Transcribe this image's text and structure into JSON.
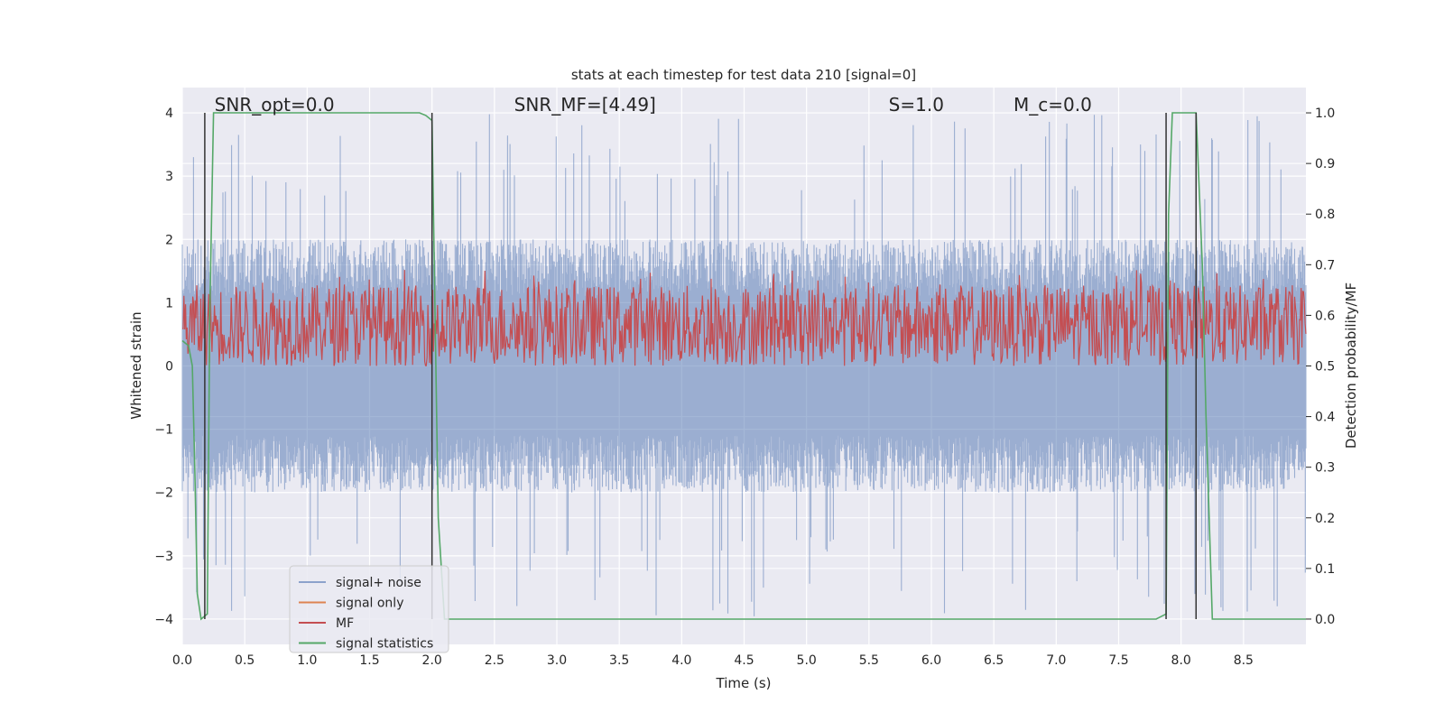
{
  "chart_data": {
    "type": "line",
    "title": "stats at each timestep for test data 210 [signal=0]",
    "xlabel": "Time (s)",
    "ylabel": "Whitened strain",
    "ylabel_right": "Detection probability/MF",
    "xlim": [
      0,
      9.0
    ],
    "ylim": [
      -4.4,
      4.4
    ],
    "ylim_right": [
      -0.05,
      1.05
    ],
    "x_ticks": [
      "0.0",
      "0.5",
      "1.0",
      "1.5",
      "2.0",
      "2.5",
      "3.0",
      "3.5",
      "4.0",
      "4.5",
      "5.0",
      "5.5",
      "6.0",
      "6.5",
      "7.0",
      "7.5",
      "8.0",
      "8.5"
    ],
    "y_ticks": [
      "4",
      "3",
      "2",
      "1",
      "0",
      "−1",
      "−2",
      "−3",
      "−4"
    ],
    "y_ticks_right": [
      "1.0",
      "0.9",
      "0.8",
      "0.7",
      "0.6",
      "0.5",
      "0.4",
      "0.3",
      "0.2",
      "0.1",
      "0.0"
    ],
    "grid": true,
    "legend_position": "lower-left",
    "annotations": [
      {
        "text": "SNR_opt=0.0",
        "x": 0.2,
        "y": 4.0
      },
      {
        "text": "SNR_MF=[4.49]",
        "x": 2.6,
        "y": 4.0
      },
      {
        "text": "S=1.0",
        "x": 5.6,
        "y": 4.0
      },
      {
        "text": "M_c=0.0",
        "x": 6.6,
        "y": 4.0
      }
    ],
    "series": [
      {
        "name": "signal+ noise",
        "color": "#4c72b0",
        "axis": "left",
        "style": "noise band roughly ±2 with peaks to ±4",
        "amplitude": 2.0
      },
      {
        "name": "signal only",
        "color": "#dd8452",
        "axis": "left",
        "values": []
      },
      {
        "name": "MF",
        "color": "#c44e52",
        "axis": "right",
        "style": "noisy trace between 0.5 and 0.65",
        "range": [
          0.5,
          0.66
        ]
      },
      {
        "name": "signal statistics",
        "color": "#55a868",
        "axis": "right",
        "x": [
          0.0,
          0.05,
          0.08,
          0.1,
          0.12,
          0.15,
          0.2,
          0.22,
          0.25,
          0.3,
          0.5,
          1.0,
          1.5,
          1.8,
          1.9,
          1.95,
          2.0,
          2.05,
          2.1,
          2.15,
          2.3,
          4.0,
          6.0,
          7.8,
          7.88,
          7.9,
          7.93,
          8.0,
          8.12,
          8.17,
          8.2,
          8.25,
          8.3,
          9.0
        ],
        "values": [
          0.55,
          0.54,
          0.5,
          0.3,
          0.05,
          0.0,
          0.01,
          0.6,
          1.0,
          1.0,
          1.0,
          1.0,
          1.0,
          1.0,
          1.0,
          0.995,
          0.985,
          0.2,
          0.0,
          0.0,
          0.0,
          0.0,
          0.0,
          0.0,
          0.01,
          0.8,
          1.0,
          1.0,
          1.0,
          0.7,
          0.4,
          0.0,
          0.0,
          0.0
        ]
      }
    ],
    "vertical_lines": [
      {
        "x": 0.18,
        "color": "#333333"
      },
      {
        "x": 2.0,
        "color": "#333333"
      },
      {
        "x": 7.88,
        "color": "#333333"
      },
      {
        "x": 8.12,
        "color": "#333333"
      }
    ]
  }
}
